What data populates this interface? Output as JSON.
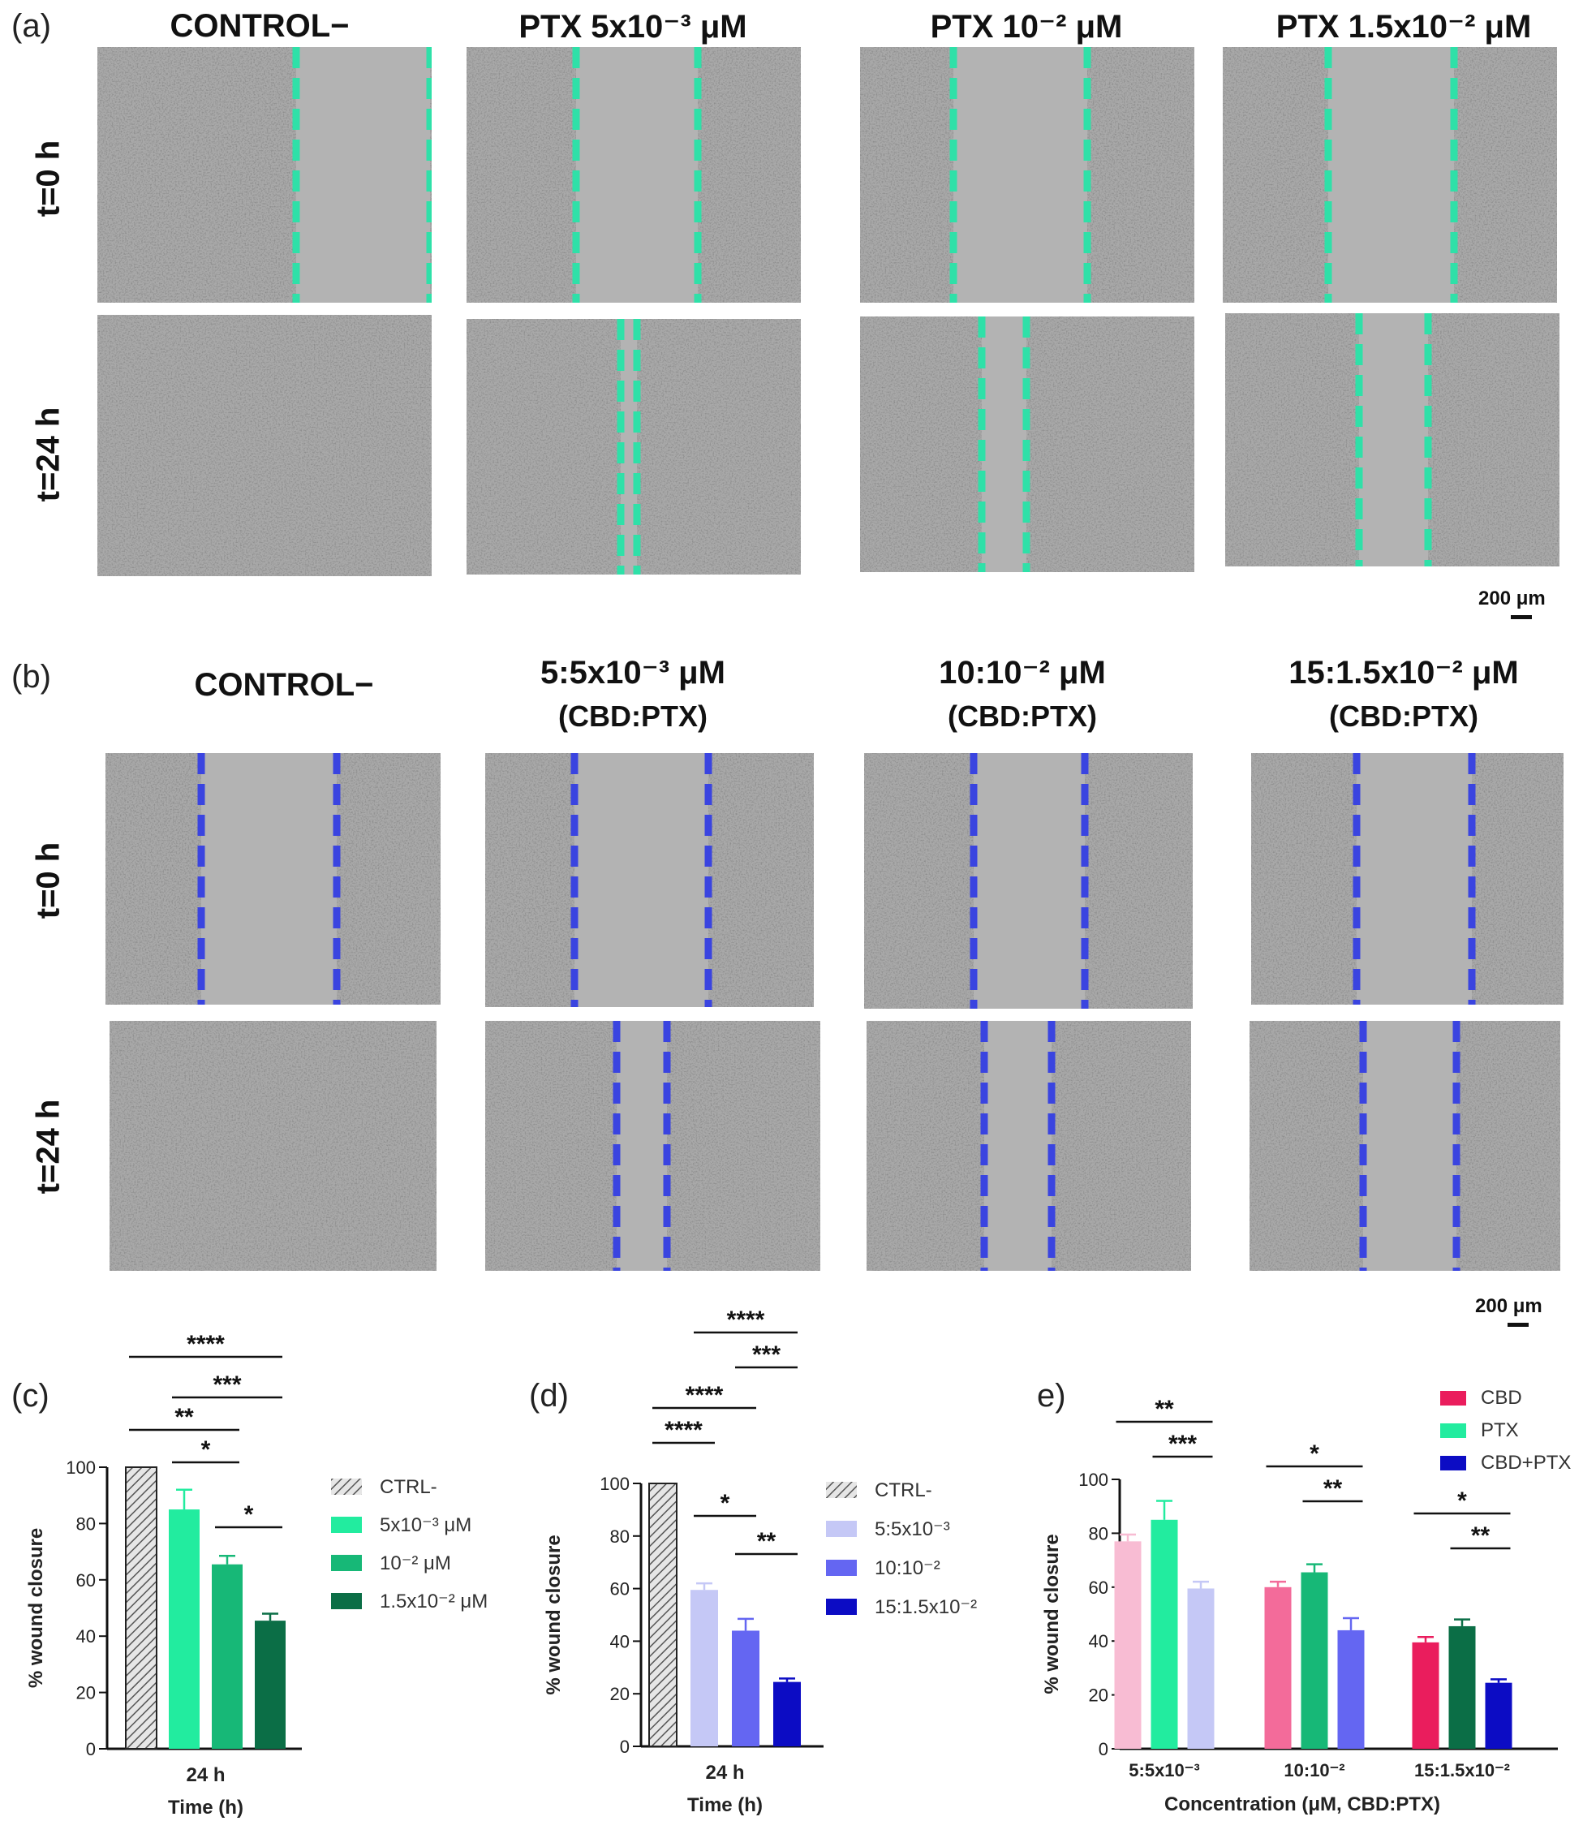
{
  "panel_a": {
    "letter": "(a)",
    "columns": [
      "CONTROL−",
      "PTX 5x10⁻³ μM",
      "PTX 10⁻² μM",
      "PTX 1.5x10⁻² μM"
    ],
    "rows": [
      "t=0 h",
      "t=24 h"
    ],
    "scale_bar": "200 μm",
    "line_color": "#2fe0a8"
  },
  "panel_b": {
    "letter": "(b)",
    "columns": [
      {
        "title": "CONTROL−",
        "sub": ""
      },
      {
        "title": "5:5x10⁻³ μM",
        "sub": "(CBD:PTX)"
      },
      {
        "title": "10:10⁻² μM",
        "sub": "(CBD:PTX)"
      },
      {
        "title": "15:1.5x10⁻² μM",
        "sub": "(CBD:PTX)"
      }
    ],
    "rows": [
      "t=0 h",
      "t=24 h"
    ],
    "scale_bar": "200 μm",
    "line_color": "#3a44e0"
  },
  "chart_data": [
    {
      "panel": "(c)",
      "type": "bar",
      "categories": [
        "24 h"
      ],
      "xlabel": "Time (h)",
      "ylabel": "% wound closure",
      "ylim": [
        0,
        100
      ],
      "yticks": [
        0,
        20,
        40,
        60,
        80,
        100
      ],
      "series": [
        {
          "name": "CTRL-",
          "values": [
            100
          ],
          "error": [
            0
          ],
          "color": "#cfcfcf",
          "hatch": true
        },
        {
          "name": "5x10⁻³ μM",
          "values": [
            85
          ],
          "error": [
            7
          ],
          "color": "#22ec9f"
        },
        {
          "name": "10⁻² μM",
          "values": [
            65.5
          ],
          "error": [
            3
          ],
          "color": "#17b877"
        },
        {
          "name": "1.5x10⁻² μM",
          "values": [
            45.5
          ],
          "error": [
            2.5
          ],
          "color": "#0b6e46"
        }
      ],
      "significance": [
        {
          "label": "****",
          "from": 0,
          "to": 3
        },
        {
          "label": "***",
          "from": 1,
          "to": 3
        },
        {
          "label": "**",
          "from": 0,
          "to": 2
        },
        {
          "label": "*",
          "from": 1,
          "to": 2
        },
        {
          "label": "*",
          "from": 2,
          "to": 3
        }
      ]
    },
    {
      "panel": "(d)",
      "type": "bar",
      "categories": [
        "24 h"
      ],
      "xlabel": "Time (h)",
      "ylabel": "% wound closure",
      "ylim": [
        0,
        100
      ],
      "yticks": [
        0,
        20,
        40,
        60,
        80,
        100
      ],
      "series": [
        {
          "name": "CTRL-",
          "values": [
            100
          ],
          "error": [
            0
          ],
          "color": "#cfcfcf",
          "hatch": true
        },
        {
          "name": "5:5x10⁻³",
          "values": [
            59.5
          ],
          "error": [
            2.5
          ],
          "color": "#c5c8f6"
        },
        {
          "name": "10:10⁻²",
          "values": [
            44
          ],
          "error": [
            4.5
          ],
          "color": "#6466f2"
        },
        {
          "name": "15:1.5x10⁻²",
          "values": [
            24.5
          ],
          "error": [
            1.3
          ],
          "color": "#0c0cc4"
        }
      ],
      "significance": [
        {
          "label": "****",
          "from": 1,
          "to": 3
        },
        {
          "label": "***",
          "from": 2,
          "to": 3
        },
        {
          "label": "****",
          "from": 0,
          "to": 2
        },
        {
          "label": "****",
          "from": 0,
          "to": 1
        },
        {
          "label": "*",
          "from": 1,
          "to": 2
        },
        {
          "label": "**",
          "from": 2,
          "to": 3
        }
      ]
    },
    {
      "panel": "e)",
      "type": "bar",
      "categories": [
        "5:5x10⁻³",
        "10:10⁻²",
        "15:1.5x10⁻²"
      ],
      "xlabel": "Concentration (μM, CBD:PTX)",
      "ylabel": "% wound closure",
      "ylim": [
        0,
        100
      ],
      "yticks": [
        0,
        20,
        40,
        60,
        80,
        100
      ],
      "series": [
        {
          "name": "CBD",
          "values": [
            77,
            60,
            39.5
          ],
          "error": [
            2.5,
            2,
            2
          ],
          "colors": [
            "#f8bcd3",
            "#f36b9a",
            "#ea1d5d"
          ],
          "legend_color": "#ea1d5d"
        },
        {
          "name": "PTX",
          "values": [
            85,
            65.5,
            45.5
          ],
          "error": [
            7,
            3,
            2.5
          ],
          "colors": [
            "#22ec9f",
            "#17b877",
            "#0b6e46"
          ],
          "legend_color": "#22ec9f"
        },
        {
          "name": "CBD+PTX",
          "values": [
            59.5,
            44,
            24.5
          ],
          "error": [
            2.5,
            4.5,
            1.3
          ],
          "colors": [
            "#c5c8f6",
            "#6466f2",
            "#0c0cc4"
          ],
          "legend_color": "#0c0cc4"
        }
      ],
      "significance": [
        {
          "group": 0,
          "label": "**",
          "from": 0,
          "to": 2
        },
        {
          "group": 0,
          "label": "***",
          "from": 1,
          "to": 2
        },
        {
          "group": 1,
          "label": "*",
          "from": 0,
          "to": 2
        },
        {
          "group": 1,
          "label": "**",
          "from": 1,
          "to": 2
        },
        {
          "group": 2,
          "label": "*",
          "from": 0,
          "to": 2
        },
        {
          "group": 2,
          "label": "**",
          "from": 1,
          "to": 2
        }
      ]
    }
  ]
}
